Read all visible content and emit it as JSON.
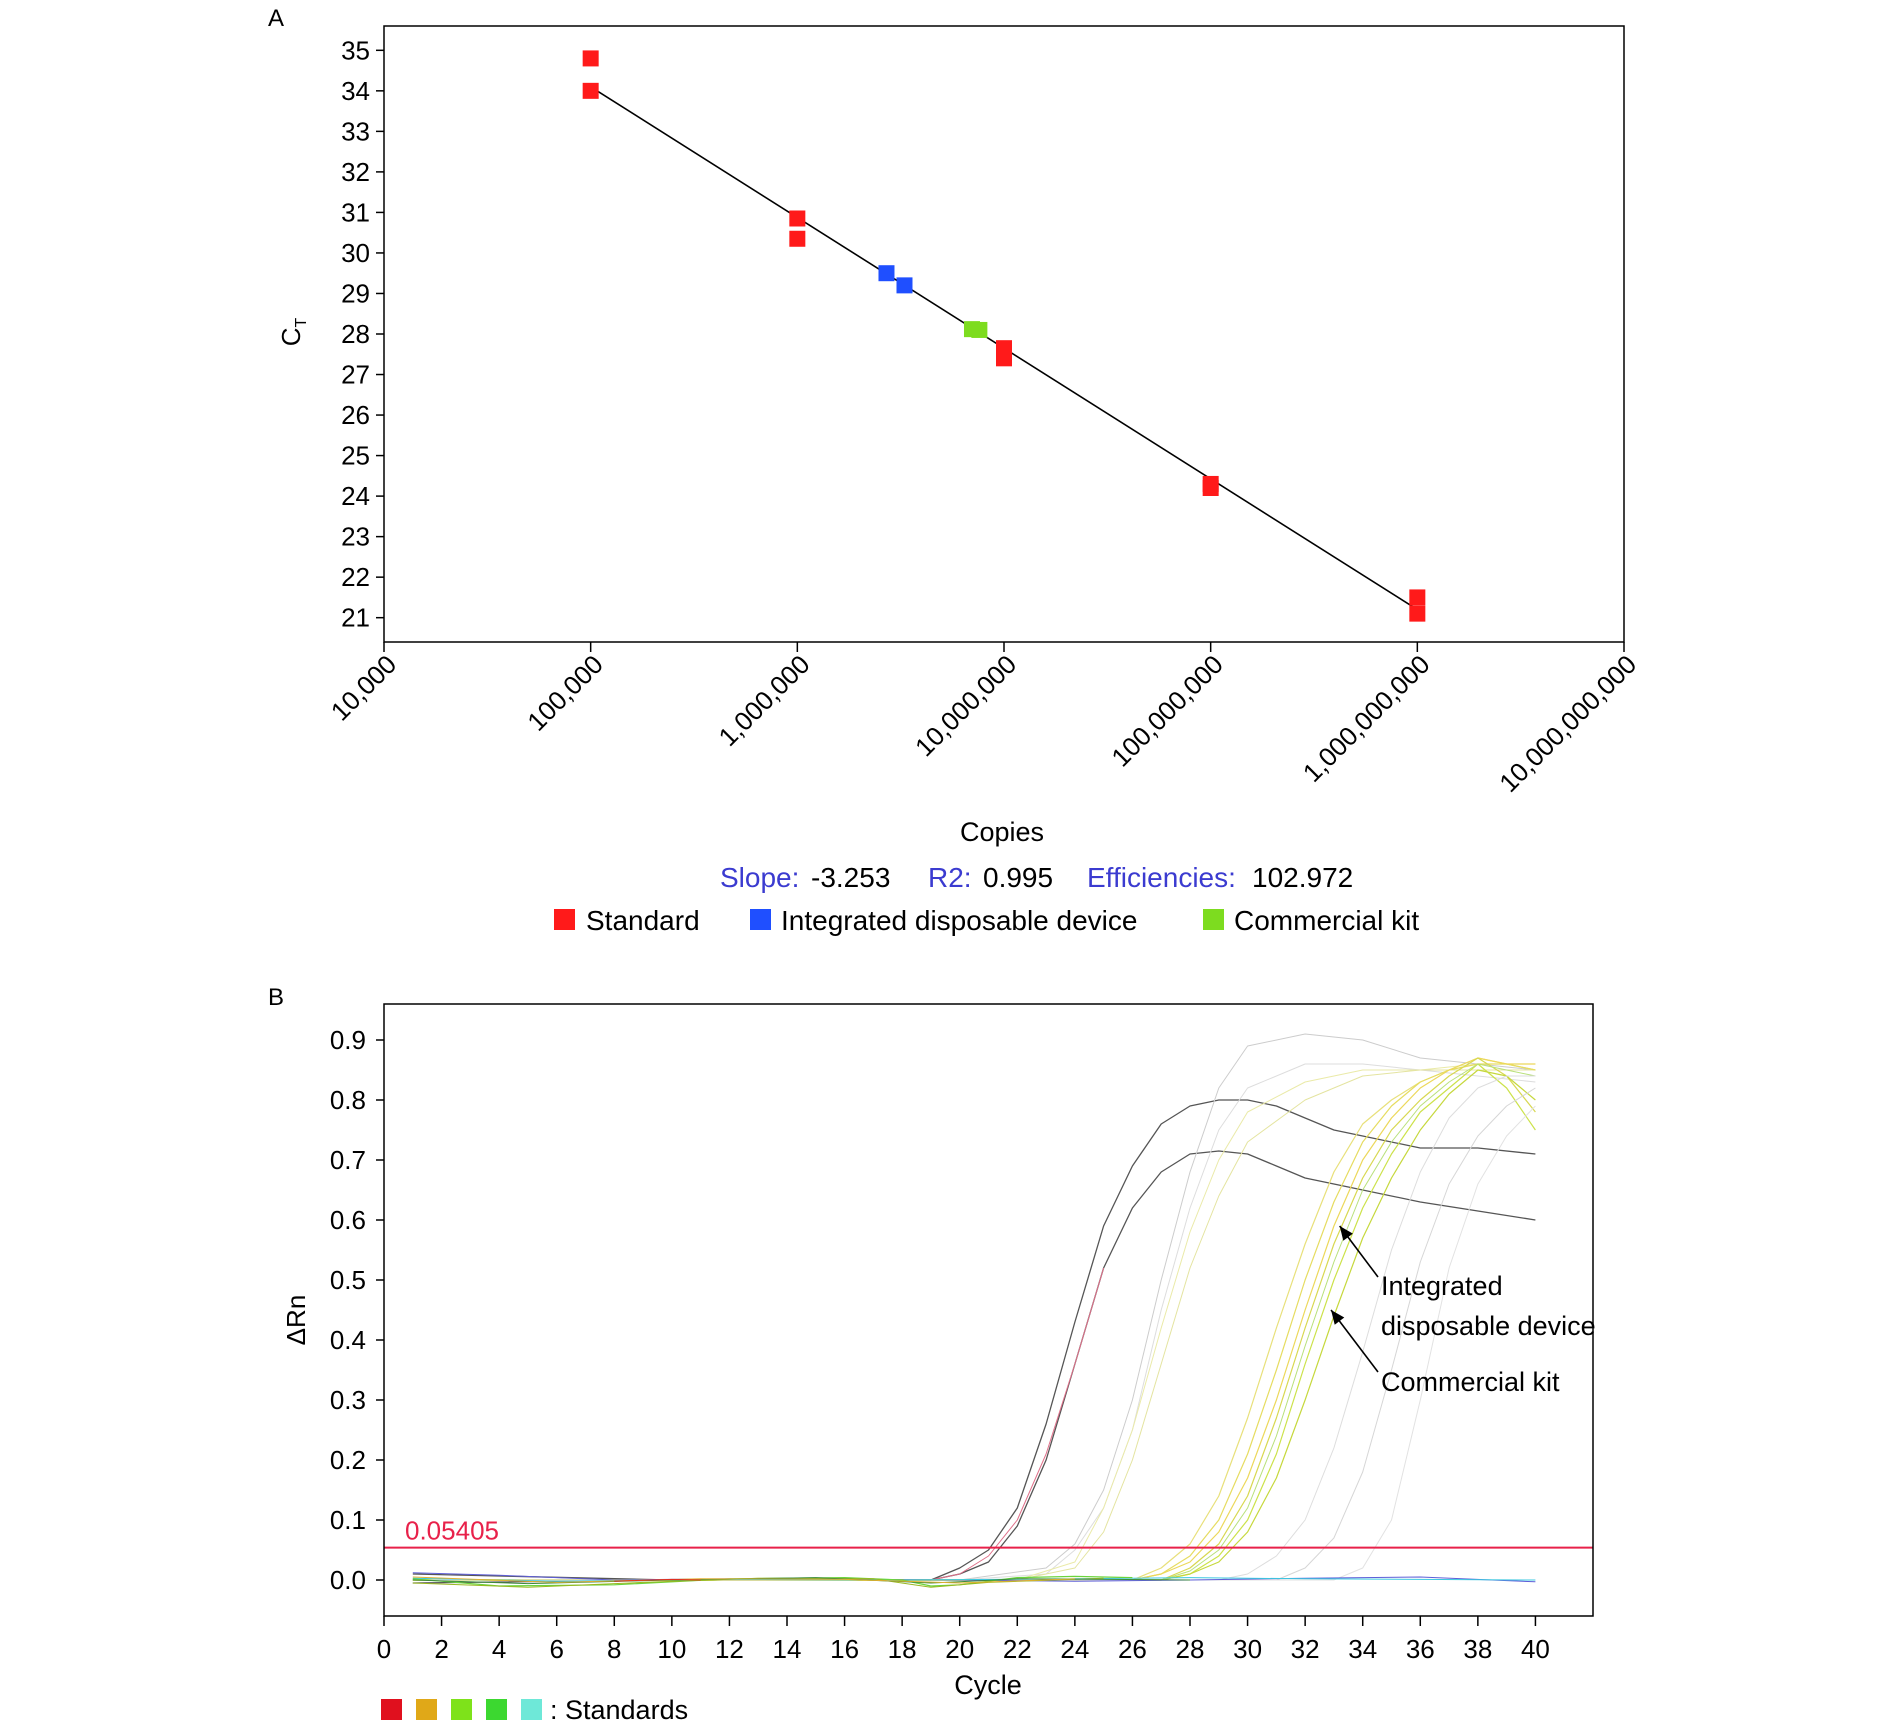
{
  "chart_data": [
    {
      "panel_label": "A",
      "type": "scatter",
      "xlabel": "Copies",
      "ylabel": "C",
      "ylabel_subscript": "T",
      "x_scale": "log",
      "xlim": [
        10000,
        10000000000
      ],
      "ylim": [
        20.4,
        35.6
      ],
      "x_ticks": [
        10000,
        100000,
        1000000,
        10000000,
        100000000,
        1000000000,
        10000000000
      ],
      "x_tick_labels": [
        "10,000",
        "100,000",
        "1,000,000",
        "10,000,000",
        "100,000,000",
        "1,000,000,000",
        "10,000,000,000"
      ],
      "y_ticks": [
        21,
        22,
        23,
        24,
        25,
        26,
        27,
        28,
        29,
        30,
        31,
        32,
        33,
        34,
        35
      ],
      "y_tick_labels": [
        "21",
        "22",
        "23",
        "24",
        "25",
        "26",
        "27",
        "28",
        "29",
        "30",
        "31",
        "32",
        "33",
        "34",
        "35"
      ],
      "fit_line": {
        "x": [
          100000,
          1000000000
        ],
        "y": [
          34.1,
          21.2
        ]
      },
      "stats": [
        {
          "label": "Slope:",
          "value": "-3.253"
        },
        {
          "label": "R2:",
          "value": "0.995"
        },
        {
          "label": "Efficiencies:",
          "value": "102.972"
        }
      ],
      "series": [
        {
          "name": "Standard",
          "color": "#ff1a1a",
          "points": [
            [
              100000,
              34.8
            ],
            [
              100000,
              34.0
            ],
            [
              1000000,
              30.85
            ],
            [
              1000000,
              30.35
            ],
            [
              10000000,
              27.65
            ],
            [
              10000000,
              27.4
            ],
            [
              100000000,
              24.3
            ],
            [
              100000000,
              24.2
            ],
            [
              1000000000,
              21.5
            ],
            [
              1000000000,
              21.1
            ]
          ]
        },
        {
          "name": "Integrated disposable device",
          "color": "#1f4fff",
          "points": [
            [
              2700000,
              29.5
            ],
            [
              3300000,
              29.2
            ]
          ]
        },
        {
          "name": "Commercial kit",
          "color": "#7ddc1f",
          "points": [
            [
              7000000,
              28.12
            ],
            [
              7600000,
              28.1
            ]
          ]
        }
      ]
    },
    {
      "panel_label": "B",
      "type": "line",
      "xlabel": "Cycle",
      "ylabel": "ΔRn",
      "xlim": [
        0,
        42
      ],
      "ylim": [
        -0.06,
        0.96
      ],
      "x_ticks": [
        0,
        2,
        4,
        6,
        8,
        10,
        12,
        14,
        16,
        18,
        20,
        22,
        24,
        26,
        28,
        30,
        32,
        34,
        36,
        38,
        40
      ],
      "x_tick_labels": [
        "0",
        "2",
        "4",
        "6",
        "8",
        "10",
        "12",
        "14",
        "16",
        "18",
        "20",
        "22",
        "24",
        "26",
        "28",
        "30",
        "32",
        "34",
        "36",
        "38",
        "40"
      ],
      "y_ticks": [
        0.0,
        0.1,
        0.2,
        0.3,
        0.4,
        0.5,
        0.6,
        0.7,
        0.8,
        0.9
      ],
      "y_tick_labels": [
        "0.0",
        "0.1",
        "0.2",
        "0.3",
        "0.4",
        "0.5",
        "0.6",
        "0.7",
        "0.8",
        "0.9"
      ],
      "threshold": {
        "value": 0.05405,
        "label": "0.05405",
        "color": "#e8214a"
      },
      "annotations": [
        {
          "lines": [
            "Integrated",
            "disposable device"
          ],
          "arrow_to": [
            33.2,
            0.59
          ]
        },
        {
          "lines": [
            "Commercial kit"
          ],
          "arrow_to": [
            32.9,
            0.45
          ]
        }
      ],
      "standards_legend": {
        "colors": [
          "#e0101e",
          "#e0a818",
          "#7ee21a",
          "#3cd830",
          "#6ee8d8"
        ],
        "label": ": Standards"
      },
      "series": [
        {
          "color": "#555555",
          "width": 1.3,
          "x": [
            1,
            10,
            19,
            20,
            21,
            22,
            23,
            24,
            25,
            26,
            27,
            28,
            29,
            30,
            31,
            32,
            33,
            34,
            36,
            38,
            40
          ],
          "y": [
            0.01,
            0.0,
            0.0,
            0.02,
            0.05,
            0.12,
            0.26,
            0.43,
            0.59,
            0.69,
            0.76,
            0.79,
            0.8,
            0.8,
            0.79,
            0.77,
            0.75,
            0.74,
            0.72,
            0.72,
            0.71
          ]
        },
        {
          "color": "#555555",
          "width": 1.3,
          "x": [
            1,
            10,
            19,
            20,
            21,
            22,
            23,
            24,
            25,
            26,
            27,
            28,
            29,
            30,
            31,
            32,
            33,
            34,
            36,
            38,
            40
          ],
          "y": [
            -0.005,
            0.0,
            0.0,
            0.01,
            0.03,
            0.09,
            0.2,
            0.36,
            0.52,
            0.62,
            0.68,
            0.71,
            0.715,
            0.71,
            0.69,
            0.67,
            0.66,
            0.65,
            0.63,
            0.615,
            0.6
          ]
        },
        {
          "color": "#e0708a",
          "width": 1.0,
          "x": [
            19,
            20,
            21,
            22,
            23,
            24,
            25
          ],
          "y": [
            0.0,
            0.01,
            0.04,
            0.1,
            0.21,
            0.36,
            0.52
          ]
        },
        {
          "color": "#cccccc",
          "width": 1.0,
          "x": [
            1,
            20,
            23,
            24,
            25,
            26,
            27,
            28,
            29,
            30,
            32,
            34,
            36,
            38,
            40
          ],
          "y": [
            0.0,
            0.0,
            0.02,
            0.06,
            0.15,
            0.3,
            0.5,
            0.68,
            0.82,
            0.89,
            0.91,
            0.9,
            0.87,
            0.86,
            0.85
          ]
        },
        {
          "color": "#dddddd",
          "width": 1.0,
          "x": [
            1,
            20,
            23,
            24,
            25,
            26,
            27,
            28,
            29,
            30,
            32,
            34,
            36,
            38,
            40
          ],
          "y": [
            0.0,
            0.0,
            0.01,
            0.05,
            0.12,
            0.25,
            0.45,
            0.62,
            0.75,
            0.82,
            0.86,
            0.86,
            0.85,
            0.84,
            0.83
          ]
        },
        {
          "color": "#eaeaa8",
          "width": 1.0,
          "x": [
            1,
            22,
            24,
            25,
            26,
            27,
            28,
            29,
            30,
            32,
            34,
            36,
            38,
            40
          ],
          "y": [
            0.0,
            0.0,
            0.03,
            0.12,
            0.25,
            0.42,
            0.58,
            0.7,
            0.78,
            0.83,
            0.85,
            0.85,
            0.86,
            0.86
          ]
        },
        {
          "color": "#e4e4a0",
          "width": 1.0,
          "x": [
            1,
            22,
            24,
            25,
            26,
            27,
            28,
            29,
            30,
            32,
            34,
            36,
            38,
            40
          ],
          "y": [
            0.0,
            0.0,
            0.02,
            0.08,
            0.2,
            0.36,
            0.52,
            0.64,
            0.73,
            0.8,
            0.84,
            0.85,
            0.85,
            0.85
          ]
        },
        {
          "color": "#e8e07a",
          "width": 1.2,
          "x": [
            1,
            26,
            27,
            28,
            29,
            30,
            31,
            32,
            33,
            34,
            35,
            36,
            37,
            38,
            39,
            40
          ],
          "y": [
            0.0,
            0.0,
            0.02,
            0.06,
            0.14,
            0.27,
            0.42,
            0.56,
            0.68,
            0.76,
            0.8,
            0.83,
            0.85,
            0.87,
            0.86,
            0.85
          ]
        },
        {
          "color": "#e6dc60",
          "width": 1.2,
          "x": [
            1,
            26,
            27,
            28,
            29,
            30,
            31,
            32,
            33,
            34,
            35,
            36,
            37,
            38,
            39,
            40
          ],
          "y": [
            0.0,
            0.0,
            0.01,
            0.04,
            0.1,
            0.21,
            0.35,
            0.5,
            0.63,
            0.73,
            0.79,
            0.83,
            0.85,
            0.86,
            0.86,
            0.85
          ]
        },
        {
          "color": "#ecd85a",
          "width": 1.2,
          "x": [
            1,
            26,
            27,
            28,
            29,
            30,
            31,
            32,
            33,
            34,
            35,
            36,
            37,
            38,
            39,
            40
          ],
          "y": [
            0.0,
            0.0,
            0.01,
            0.03,
            0.08,
            0.17,
            0.3,
            0.45,
            0.59,
            0.7,
            0.77,
            0.82,
            0.85,
            0.87,
            0.86,
            0.86
          ]
        },
        {
          "color": "#d8d850",
          "width": 1.2,
          "x": [
            1,
            27,
            28,
            29,
            30,
            31,
            32,
            33,
            34,
            35,
            36,
            37,
            38,
            39,
            40
          ],
          "y": [
            0.0,
            0.0,
            0.02,
            0.06,
            0.14,
            0.27,
            0.42,
            0.56,
            0.67,
            0.75,
            0.8,
            0.84,
            0.87,
            0.84,
            0.78
          ]
        },
        {
          "color": "#cce24a",
          "width": 1.2,
          "x": [
            1,
            27,
            28,
            29,
            30,
            31,
            32,
            33,
            34,
            35,
            36,
            37,
            38,
            39,
            40
          ],
          "y": [
            0.0,
            0.0,
            0.01,
            0.04,
            0.1,
            0.21,
            0.36,
            0.5,
            0.62,
            0.71,
            0.78,
            0.82,
            0.86,
            0.82,
            0.75
          ]
        },
        {
          "color": "#c6d83c",
          "width": 1.2,
          "x": [
            1,
            27,
            28,
            29,
            30,
            31,
            32,
            33,
            34,
            35,
            36,
            37,
            38,
            39,
            40
          ],
          "y": [
            0.0,
            0.0,
            0.01,
            0.03,
            0.08,
            0.17,
            0.3,
            0.44,
            0.57,
            0.67,
            0.75,
            0.81,
            0.85,
            0.84,
            0.8
          ]
        },
        {
          "color": "#b8e07a",
          "width": 1.0,
          "x": [
            1,
            27,
            28,
            29,
            30,
            31,
            32,
            33,
            34,
            35,
            36,
            37,
            38,
            39,
            40
          ],
          "y": [
            0.0,
            0.0,
            0.015,
            0.05,
            0.12,
            0.24,
            0.39,
            0.53,
            0.65,
            0.73,
            0.79,
            0.83,
            0.86,
            0.85,
            0.84
          ]
        },
        {
          "color": "#dddddd",
          "width": 1.0,
          "x": [
            1,
            29,
            30,
            31,
            32,
            33,
            34,
            35,
            36,
            37,
            38,
            39,
            40
          ],
          "y": [
            0.0,
            0.0,
            0.01,
            0.04,
            0.1,
            0.22,
            0.38,
            0.55,
            0.68,
            0.77,
            0.82,
            0.84,
            0.84
          ]
        },
        {
          "color": "#d6d6d6",
          "width": 1.0,
          "x": [
            1,
            31,
            32,
            33,
            34,
            35,
            36,
            37,
            38,
            39,
            40
          ],
          "y": [
            0.0,
            0.0,
            0.02,
            0.07,
            0.18,
            0.35,
            0.53,
            0.66,
            0.74,
            0.79,
            0.82
          ]
        },
        {
          "color": "#e2e2e2",
          "width": 1.0,
          "x": [
            1,
            33,
            34,
            35,
            36,
            37,
            38,
            39,
            40
          ],
          "y": [
            0.0,
            0.0,
            0.02,
            0.1,
            0.3,
            0.52,
            0.66,
            0.74,
            0.79
          ]
        },
        {
          "color": "#5e5ed8",
          "width": 1.0,
          "x": [
            1,
            4,
            8,
            12,
            16,
            20,
            24,
            28,
            32,
            36,
            40
          ],
          "y": [
            0.012,
            0.008,
            0.0,
            0.002,
            0.001,
            0.0,
            -0.002,
            0.0,
            0.003,
            0.005,
            -0.003
          ]
        },
        {
          "color": "#3cc8e0",
          "width": 1.0,
          "x": [
            1,
            6,
            12,
            18,
            24,
            28,
            32,
            36,
            40
          ],
          "y": [
            0.003,
            -0.002,
            0.001,
            0.0,
            0.002,
            0.004,
            0.002,
            0.001,
            0.0
          ]
        },
        {
          "color": "#6bd43c",
          "width": 1.2,
          "x": [
            1,
            4,
            8,
            12,
            16,
            18,
            19,
            20,
            22,
            24,
            26
          ],
          "y": [
            0.002,
            -0.01,
            -0.008,
            0.002,
            0.004,
            0.0,
            -0.01,
            -0.008,
            0.004,
            0.006,
            0.004
          ]
        },
        {
          "color": "#9ab820",
          "width": 1.0,
          "x": [
            1,
            5,
            9,
            13,
            17,
            19,
            21,
            25
          ],
          "y": [
            -0.005,
            -0.012,
            -0.004,
            0.003,
            0.002,
            -0.012,
            -0.004,
            0.003
          ]
        },
        {
          "color": "#3c8a3c",
          "width": 1.0,
          "x": [
            1,
            5,
            10,
            15,
            19,
            20,
            22,
            28
          ],
          "y": [
            0.0,
            -0.006,
            0.0,
            0.004,
            -0.005,
            -0.003,
            0.002,
            0.0
          ]
        },
        {
          "color": "#e0b030",
          "width": 1.0,
          "x": [
            1,
            6,
            11,
            16,
            20,
            24
          ],
          "y": [
            0.005,
            -0.004,
            0.002,
            0.001,
            -0.005,
            0.002
          ]
        },
        {
          "color": "#e03020",
          "width": 1.0,
          "x": [
            8,
            10,
            11
          ],
          "y": [
            -0.002,
            0.001,
            0.0
          ]
        }
      ]
    }
  ]
}
